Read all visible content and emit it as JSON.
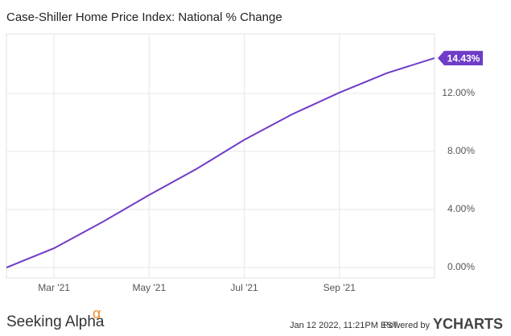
{
  "chart_data": {
    "type": "line",
    "title": "Case-Shiller Home Price Index: National % Change",
    "categories": [
      "2021-02",
      "2021-03",
      "2021-04",
      "2021-05",
      "2021-06",
      "2021-07",
      "2021-08",
      "2021-09",
      "2021-10",
      "2021-11"
    ],
    "series": [
      {
        "name": "Case-Shiller Home Price Index: National % Change",
        "color": "#6f3cc7",
        "values": [
          0,
          1.33,
          3.1,
          5.0,
          6.8,
          8.8,
          10.55,
          12.05,
          13.4,
          14.43
        ],
        "value_labels": [
          null,
          null,
          null,
          null,
          null,
          null,
          null,
          null,
          null,
          "14.43%"
        ]
      }
    ],
    "xticks": [
      {
        "value": "2021-03",
        "label": "Mar '21"
      },
      {
        "value": "2021-05",
        "label": "May '21"
      },
      {
        "value": "2021-07",
        "label": "Jul '21"
      },
      {
        "value": "2021-09",
        "label": "Sep '21"
      }
    ],
    "ylim": [
      -0.72,
      16.1
    ],
    "yticks": [
      {
        "value": 0,
        "label": "0.00%"
      },
      {
        "value": 4,
        "label": "4.00%"
      },
      {
        "value": 8,
        "label": "8.00%"
      },
      {
        "value": 12,
        "label": "12.00%"
      }
    ],
    "grid": true
  },
  "footer": {
    "brand": "Seeking Alpha",
    "brand_mark": "α",
    "timestamp": "Jan 12 2022, 11:21PM EST.",
    "powered": "Powered by",
    "provider": "YCHARTS"
  }
}
